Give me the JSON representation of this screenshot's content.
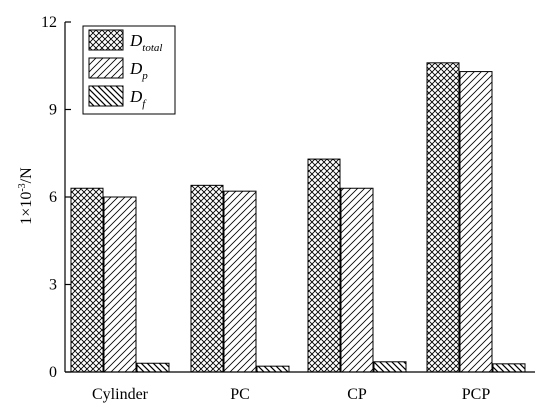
{
  "chart_data": {
    "type": "bar",
    "title": "",
    "xlabel": "",
    "ylabel": {
      "main": "1×10",
      "sup": "-3",
      "rest": "/N"
    },
    "categories": [
      "Cylinder",
      "PC",
      "CP",
      "PCP"
    ],
    "ylim": [
      0,
      12
    ],
    "yticks": [
      0,
      3,
      6,
      9,
      12
    ],
    "grid": false,
    "legend_position": "top-left",
    "series": [
      {
        "name": "D_total",
        "label_main": "D",
        "label_sub": "total",
        "pattern": "crosshatch",
        "values": [
          6.3,
          6.4,
          7.3,
          10.6
        ]
      },
      {
        "name": "D_p",
        "label_main": "D",
        "label_sub": "p",
        "pattern": "forward-diagonal",
        "values": [
          6.0,
          6.2,
          6.3,
          10.3
        ]
      },
      {
        "name": "D_f",
        "label_main": "D",
        "label_sub": "f",
        "pattern": "back-diagonal",
        "values": [
          0.3,
          0.2,
          0.35,
          0.28
        ]
      }
    ]
  }
}
